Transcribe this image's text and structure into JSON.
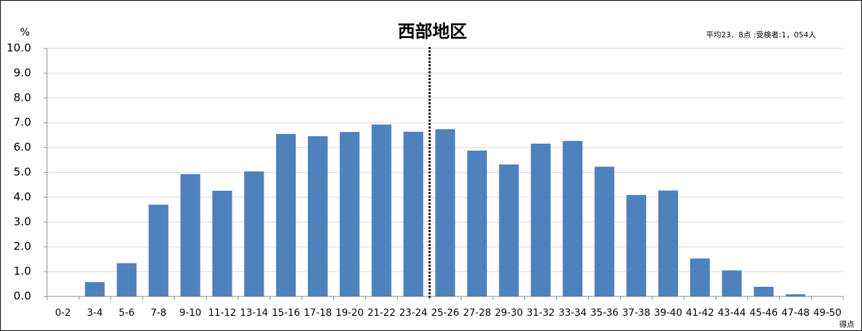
{
  "chart_data": {
    "type": "bar",
    "title": "西部地区",
    "y_label": "%",
    "x_label": "得点",
    "annotation": "平均23．8点 :受検者:1，054人",
    "categories": [
      "0-2",
      "3-4",
      "5-6",
      "7-8",
      "9-10",
      "11-12",
      "13-14",
      "15-16",
      "17-18",
      "19-20",
      "21-22",
      "23-24",
      "25-26",
      "27-28",
      "29-30",
      "31-32",
      "33-34",
      "35-36",
      "37-38",
      "39-40",
      "41-42",
      "43-44",
      "45-46",
      "47-48",
      "49-50"
    ],
    "values": [
      0,
      0.58,
      1.34,
      3.7,
      4.93,
      4.26,
      5.04,
      6.55,
      6.46,
      6.63,
      6.93,
      6.64,
      6.74,
      5.88,
      5.32,
      6.16,
      6.27,
      5.23,
      4.09,
      4.27,
      1.53,
      1.05,
      0.39,
      0.09,
      0
    ],
    "color": "#4f81bd",
    "ylim": [
      0,
      10
    ],
    "yticks": [
      {
        "value": 0,
        "label": "0.0"
      },
      {
        "value": 1,
        "label": "1.0"
      },
      {
        "value": 2,
        "label": "2.0"
      },
      {
        "value": 3,
        "label": "3.0"
      },
      {
        "value": 4,
        "label": "4.0"
      },
      {
        "value": 5,
        "label": "5.0"
      },
      {
        "value": 6,
        "label": "6.0"
      },
      {
        "value": 7,
        "label": "7.0"
      },
      {
        "value": 8,
        "label": "8.0"
      },
      {
        "value": 9,
        "label": "9.0"
      },
      {
        "value": 10,
        "label": "10.0"
      }
    ],
    "grid": true
  }
}
